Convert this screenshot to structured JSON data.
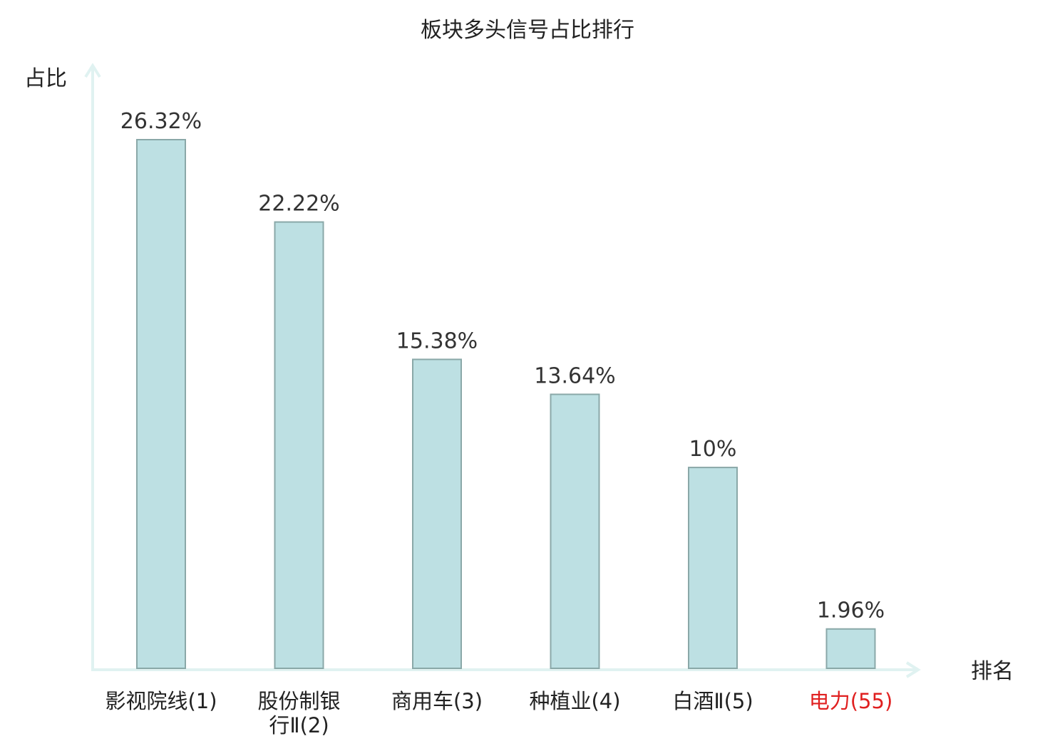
{
  "chart_data": {
    "type": "bar",
    "title": "板块多头信号占比排行",
    "xlabel": "排名",
    "ylabel": "占比",
    "categories": [
      [
        "影视院线(1)"
      ],
      [
        "股份制银",
        "行Ⅱ(2)"
      ],
      [
        "商用车(3)"
      ],
      [
        "种植业(4)"
      ],
      [
        "白酒Ⅱ(5)"
      ],
      [
        "电力(55)"
      ]
    ],
    "values": [
      26.32,
      22.22,
      15.38,
      13.64,
      10,
      1.96
    ],
    "value_labels": [
      "26.32%",
      "22.22%",
      "15.38%",
      "13.64%",
      "10%",
      "1.96%"
    ],
    "highlight_index": 5,
    "ylim": [
      0,
      26.32
    ],
    "grid": false,
    "legend": "none",
    "colors": {
      "bar_fill": "#bde0e3",
      "bar_stroke": "#8aa8a8",
      "axis": "#e0f2f1",
      "text": "#333333",
      "highlight_text": "#e02020"
    }
  }
}
